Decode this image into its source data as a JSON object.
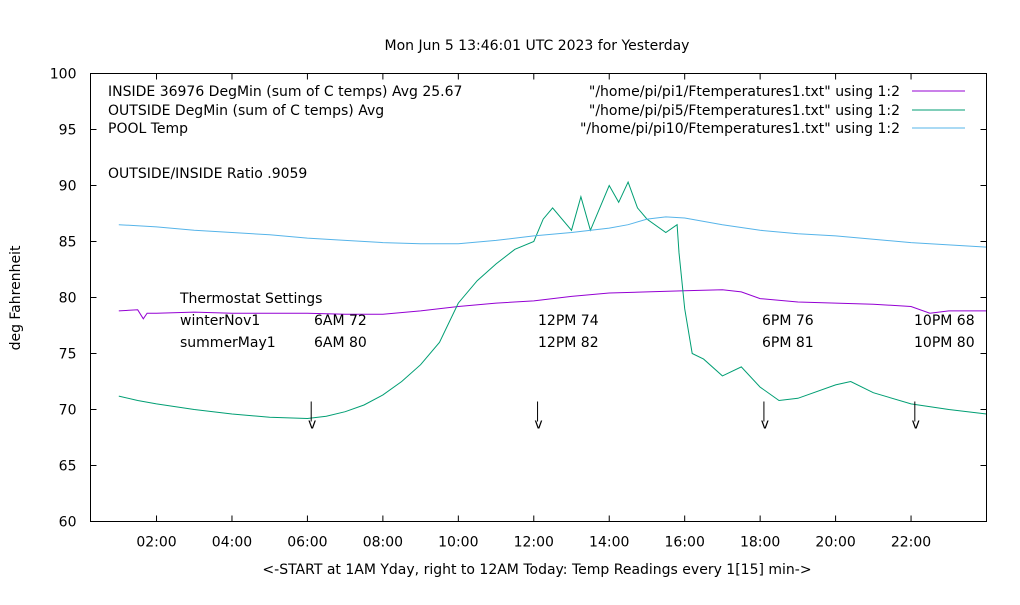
{
  "chart_data": {
    "type": "line",
    "title": "Mon Jun  5 13:46:01 UTC 2023 for Yesterday",
    "xlabel": "<-START at 1AM Yday, right to 12AM Today:  Temp Readings every 1[15] min->",
    "ylabel": "deg Fahrenheit",
    "xlim": [
      0.25,
      24
    ],
    "ylim": [
      60,
      100
    ],
    "x_ticks": [
      {
        "value": 2,
        "label": "02:00"
      },
      {
        "value": 4,
        "label": "04:00"
      },
      {
        "value": 6,
        "label": "06:00"
      },
      {
        "value": 8,
        "label": "08:00"
      },
      {
        "value": 10,
        "label": "10:00"
      },
      {
        "value": 12,
        "label": "12:00"
      },
      {
        "value": 14,
        "label": "14:00"
      },
      {
        "value": 16,
        "label": "16:00"
      },
      {
        "value": 18,
        "label": "18:00"
      },
      {
        "value": 20,
        "label": "20:00"
      },
      {
        "value": 22,
        "label": "22:00"
      }
    ],
    "y_ticks": [
      {
        "value": 60,
        "label": "60"
      },
      {
        "value": 65,
        "label": "65"
      },
      {
        "value": 70,
        "label": "70"
      },
      {
        "value": 75,
        "label": "75"
      },
      {
        "value": 80,
        "label": "80"
      },
      {
        "value": 85,
        "label": "85"
      },
      {
        "value": 90,
        "label": "90"
      },
      {
        "value": 95,
        "label": "95"
      },
      {
        "value": 100,
        "label": "100"
      }
    ],
    "legend_placement": "top-right",
    "legend_left": [
      "INSIDE 36976 DegMin (sum of C temps) Avg 25.67",
      "OUTSIDE  DegMin (sum of C temps) Avg",
      "POOL Temp"
    ],
    "series": [
      {
        "name": "\"/home/pi/pi1/Ftemperatures1.txt\" using 1:2",
        "color": "#9400d3",
        "x": [
          1.0,
          1.5,
          1.65,
          1.75,
          2.0,
          3.0,
          4.0,
          5.0,
          6.0,
          7.0,
          8.0,
          9.0,
          10.0,
          11.0,
          12.0,
          13.0,
          14.0,
          15.0,
          16.0,
          17.0,
          17.5,
          18.0,
          19.0,
          20.0,
          21.0,
          22.0,
          22.5,
          23.0,
          24.0
        ],
        "y": [
          78.8,
          78.9,
          78.1,
          78.6,
          78.6,
          78.7,
          78.6,
          78.6,
          78.6,
          78.5,
          78.5,
          78.8,
          79.2,
          79.5,
          79.7,
          80.1,
          80.4,
          80.5,
          80.6,
          80.7,
          80.5,
          79.9,
          79.6,
          79.5,
          79.4,
          79.2,
          78.6,
          78.8,
          78.8
        ]
      },
      {
        "name": "\"/home/pi/pi5/Ftemperatures1.txt\" using 1:2",
        "color": "#009e73",
        "x": [
          1.0,
          1.5,
          2.0,
          3.0,
          4.0,
          5.0,
          6.0,
          6.5,
          7.0,
          7.5,
          8.0,
          8.5,
          9.0,
          9.5,
          10.0,
          10.5,
          11.0,
          11.5,
          12.0,
          12.25,
          12.5,
          13.0,
          13.25,
          13.5,
          14.0,
          14.25,
          14.5,
          14.75,
          15.0,
          15.5,
          15.8,
          15.85,
          16.0,
          16.2,
          16.5,
          17.0,
          17.5,
          18.0,
          18.5,
          19.0,
          20.0,
          20.4,
          21.0,
          22.0,
          23.0,
          24.0
        ],
        "y": [
          71.2,
          70.8,
          70.5,
          70.0,
          69.6,
          69.3,
          69.2,
          69.4,
          69.8,
          70.4,
          71.3,
          72.5,
          74.0,
          76.0,
          79.5,
          81.5,
          83.0,
          84.3,
          85.0,
          87.0,
          88.0,
          86.0,
          89.0,
          86.0,
          90.0,
          88.5,
          90.3,
          88.0,
          87.0,
          85.8,
          86.5,
          84.0,
          79.0,
          75.0,
          74.5,
          73.0,
          73.8,
          72.0,
          70.8,
          71.0,
          72.2,
          72.5,
          71.5,
          70.5,
          70.0,
          69.6
        ]
      },
      {
        "name": "\"/home/pi/pi10/Ftemperatures1.txt\" using 1:2",
        "color": "#56b4e9",
        "x": [
          1.0,
          2.0,
          3.0,
          4.0,
          5.0,
          6.0,
          7.0,
          8.0,
          9.0,
          10.0,
          11.0,
          12.0,
          13.0,
          14.0,
          14.5,
          15.0,
          15.5,
          16.0,
          17.0,
          18.0,
          19.0,
          20.0,
          21.0,
          22.0,
          23.0,
          24.0
        ],
        "y": [
          86.5,
          86.3,
          86.0,
          85.8,
          85.6,
          85.3,
          85.1,
          84.9,
          84.8,
          84.8,
          85.1,
          85.5,
          85.8,
          86.2,
          86.5,
          87.0,
          87.2,
          87.1,
          86.5,
          86.0,
          85.7,
          85.5,
          85.2,
          84.9,
          84.7,
          84.5
        ]
      }
    ],
    "annotations": {
      "ratio": "OUTSIDE/INSIDE Ratio .9059",
      "thermostat_title": "Thermostat Settings",
      "thermostat_rows": [
        {
          "label": "winterNov1",
          "values": [
            "6AM 72",
            "12PM 74",
            "6PM 76",
            "10PM 68"
          ]
        },
        {
          "label": "summerMay1",
          "values": [
            "6AM 80",
            "12PM 82",
            "6PM 81",
            "10PM 80"
          ]
        }
      ],
      "markers": [
        {
          "x": 6.1,
          "y": 70,
          "label": "v"
        },
        {
          "x": 12.1,
          "y": 70,
          "label": "v"
        },
        {
          "x": 18.1,
          "y": 70,
          "label": "v"
        },
        {
          "x": 22.1,
          "y": 70,
          "label": "v"
        }
      ]
    }
  }
}
